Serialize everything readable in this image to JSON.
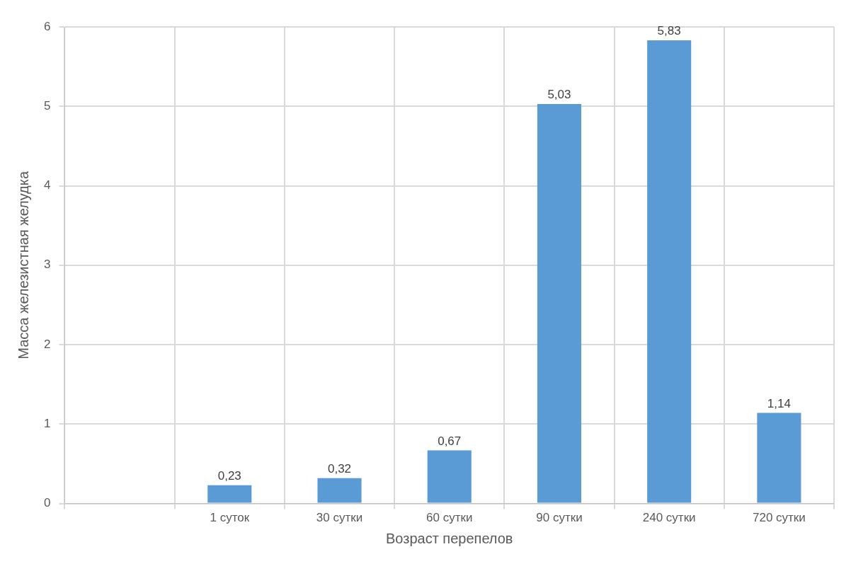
{
  "chart_data": {
    "type": "bar",
    "xlabel": "Возраст перепелов",
    "ylabel": "Масса железистная желудка",
    "categories": [
      null,
      "1 суток",
      "30 сутки",
      "60 сутки",
      "90 сутки",
      "240 сутки",
      "720 сутки"
    ],
    "values": [
      null,
      0.23,
      0.32,
      0.67,
      5.03,
      5.83,
      1.14
    ],
    "value_labels": [
      null,
      "0,23",
      "0,32",
      "0,67",
      "5,03",
      "5,83",
      "1,14"
    ],
    "color": "#5b9bd5",
    "ylim": [
      0,
      6
    ],
    "yticks": [
      0,
      1,
      2,
      3,
      4,
      5,
      6
    ],
    "grid": true
  }
}
